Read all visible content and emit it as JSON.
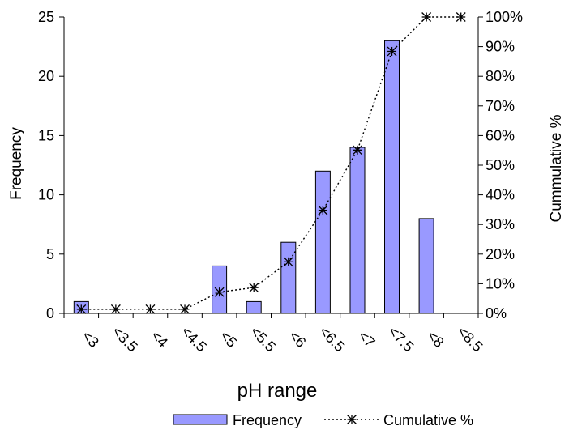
{
  "chart_data": {
    "type": "bar",
    "categories": [
      "<3",
      "<3.5",
      "<4",
      "<4.5",
      "<5",
      "<5.5",
      "<6",
      "<6.5",
      "<7",
      "<7.5",
      "<8",
      "<8.5"
    ],
    "xlabel": "pH range",
    "ylabel": "Frequency",
    "y2label": "Cummulative %",
    "ylim": [
      0,
      25
    ],
    "y2lim": [
      0,
      100
    ],
    "yticks": [
      "0",
      "5",
      "10",
      "15",
      "20",
      "25"
    ],
    "y2ticks": [
      "0%",
      "10%",
      "20%",
      "30%",
      "40%",
      "50%",
      "60%",
      "70%",
      "80%",
      "90%",
      "100%"
    ],
    "grid": false,
    "legend_position": "bottom",
    "series": [
      {
        "name": "Frequency",
        "type": "bar",
        "axis": "left",
        "values": [
          1,
          0,
          0,
          0,
          4,
          1,
          6,
          12,
          14,
          23,
          8,
          0
        ],
        "color": "#9999FF"
      },
      {
        "name": "Cumulative %",
        "type": "line",
        "axis": "right",
        "values": [
          1.4,
          1.4,
          1.4,
          1.4,
          7.2,
          8.7,
          17.4,
          34.8,
          55.1,
          88.4,
          100,
          100
        ],
        "color": "#000000"
      }
    ]
  }
}
